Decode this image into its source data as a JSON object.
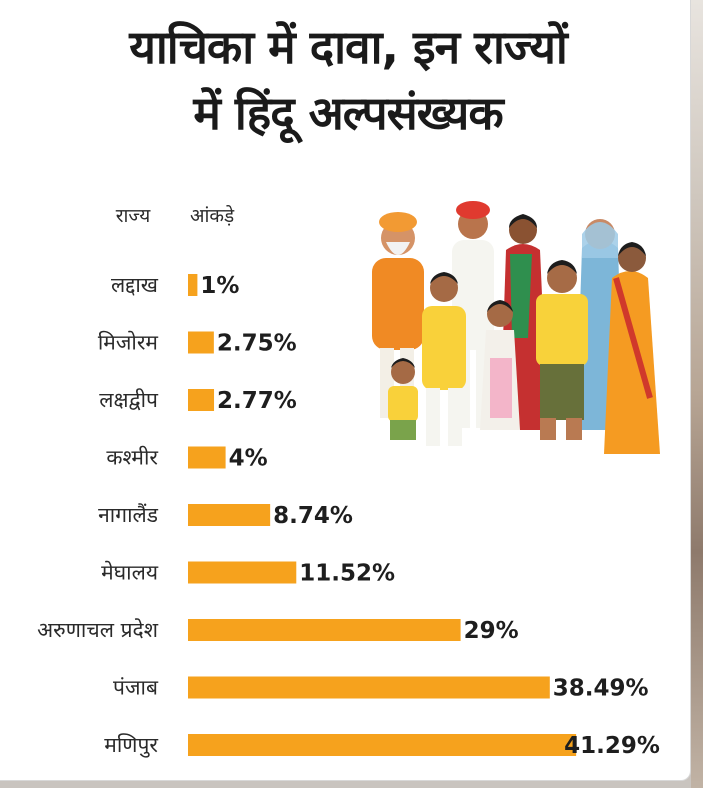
{
  "title_lines": [
    "याचिका में दावा, इन राज्यों",
    "में हिंदू अल्पसंख्यक"
  ],
  "colors": {
    "bar": "#f6a21d",
    "text": "#1e1e1e",
    "background": "#ffffff"
  },
  "chart_data": {
    "type": "bar",
    "orientation": "horizontal",
    "title": "याचिका में दावा, इन राज्यों में हिंदू अल्पसंख्यक",
    "category_header": "राज्य",
    "value_header": "आंकड़े",
    "categories": [
      "लद्दाख",
      "मिजोरम",
      "लक्षद्वीप",
      "कश्मीर",
      "नागालैंड",
      "मेघालय",
      "अरुणाचल प्रदेश",
      "पंजाब",
      "मणिपुर"
    ],
    "values": [
      1,
      2.75,
      2.77,
      4,
      8.74,
      11.52,
      29,
      38.49,
      41.29
    ],
    "value_labels": [
      "1%",
      "2.75%",
      "2.77%",
      "4%",
      "8.74%",
      "11.52%",
      "29%",
      "38.49%",
      "41.29%"
    ],
    "unit": "%",
    "grid": false,
    "legend": "none"
  }
}
